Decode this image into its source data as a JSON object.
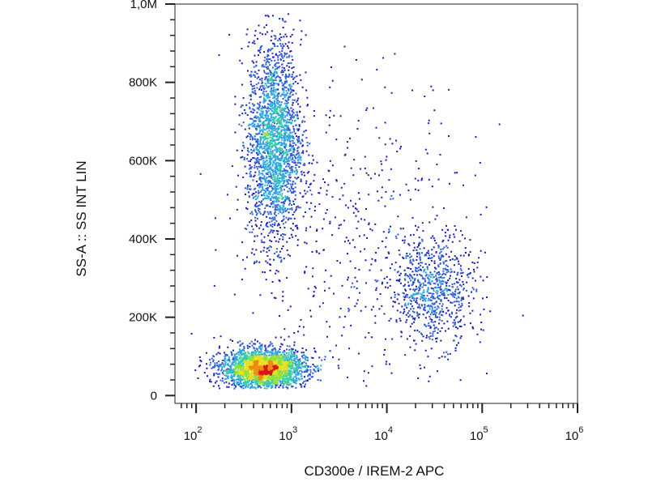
{
  "chart_data": {
    "type": "scatter",
    "style": "flow-cytometry density pseudocolor dot plot",
    "xlabel": "CD300e / IREM-2 APC",
    "ylabel": "SS-A :: SS INT LIN",
    "x_scale": "log",
    "x_range": [
      60,
      1000000
    ],
    "y_range": [
      -20000,
      1000000
    ],
    "x_ticks": [
      {
        "value": 100,
        "base": "10",
        "exp": "2"
      },
      {
        "value": 1000,
        "base": "10",
        "exp": "3"
      },
      {
        "value": 10000,
        "base": "10",
        "exp": "4"
      },
      {
        "value": 100000,
        "base": "10",
        "exp": "5"
      },
      {
        "value": 1000000,
        "base": "10",
        "exp": "6"
      }
    ],
    "y_ticks": [
      {
        "value": 0,
        "label": "0"
      },
      {
        "value": 200000,
        "label": "200K"
      },
      {
        "value": 400000,
        "label": "400K"
      },
      {
        "value": 600000,
        "label": "600K"
      },
      {
        "value": 800000,
        "label": "800K"
      },
      {
        "value": 1000000,
        "label": "1,0M"
      }
    ],
    "populations": [
      {
        "x_center": 500,
        "y_center": 70000,
        "x_spread_decades": 0.22,
        "y_spread": 25000,
        "events": 2600
      },
      {
        "x_center": 650,
        "y_center": 650000,
        "x_spread_decades": 0.14,
        "y_spread": 130000,
        "events": 2300
      },
      {
        "x_center": 30000,
        "y_center": 270000,
        "x_spread_decades": 0.22,
        "y_spread": 70000,
        "events": 800
      },
      {
        "x_center": 4000,
        "y_center": 400000,
        "x_spread_decades": 0.65,
        "y_spread": 220000,
        "events": 500
      }
    ],
    "density_colors": [
      "#1a1ab8",
      "#2f5bd6",
      "#2fa6e0",
      "#38d0a0",
      "#8fe040",
      "#e8e020",
      "#f08a18",
      "#d81818"
    ],
    "grid": false,
    "legend": "none"
  }
}
